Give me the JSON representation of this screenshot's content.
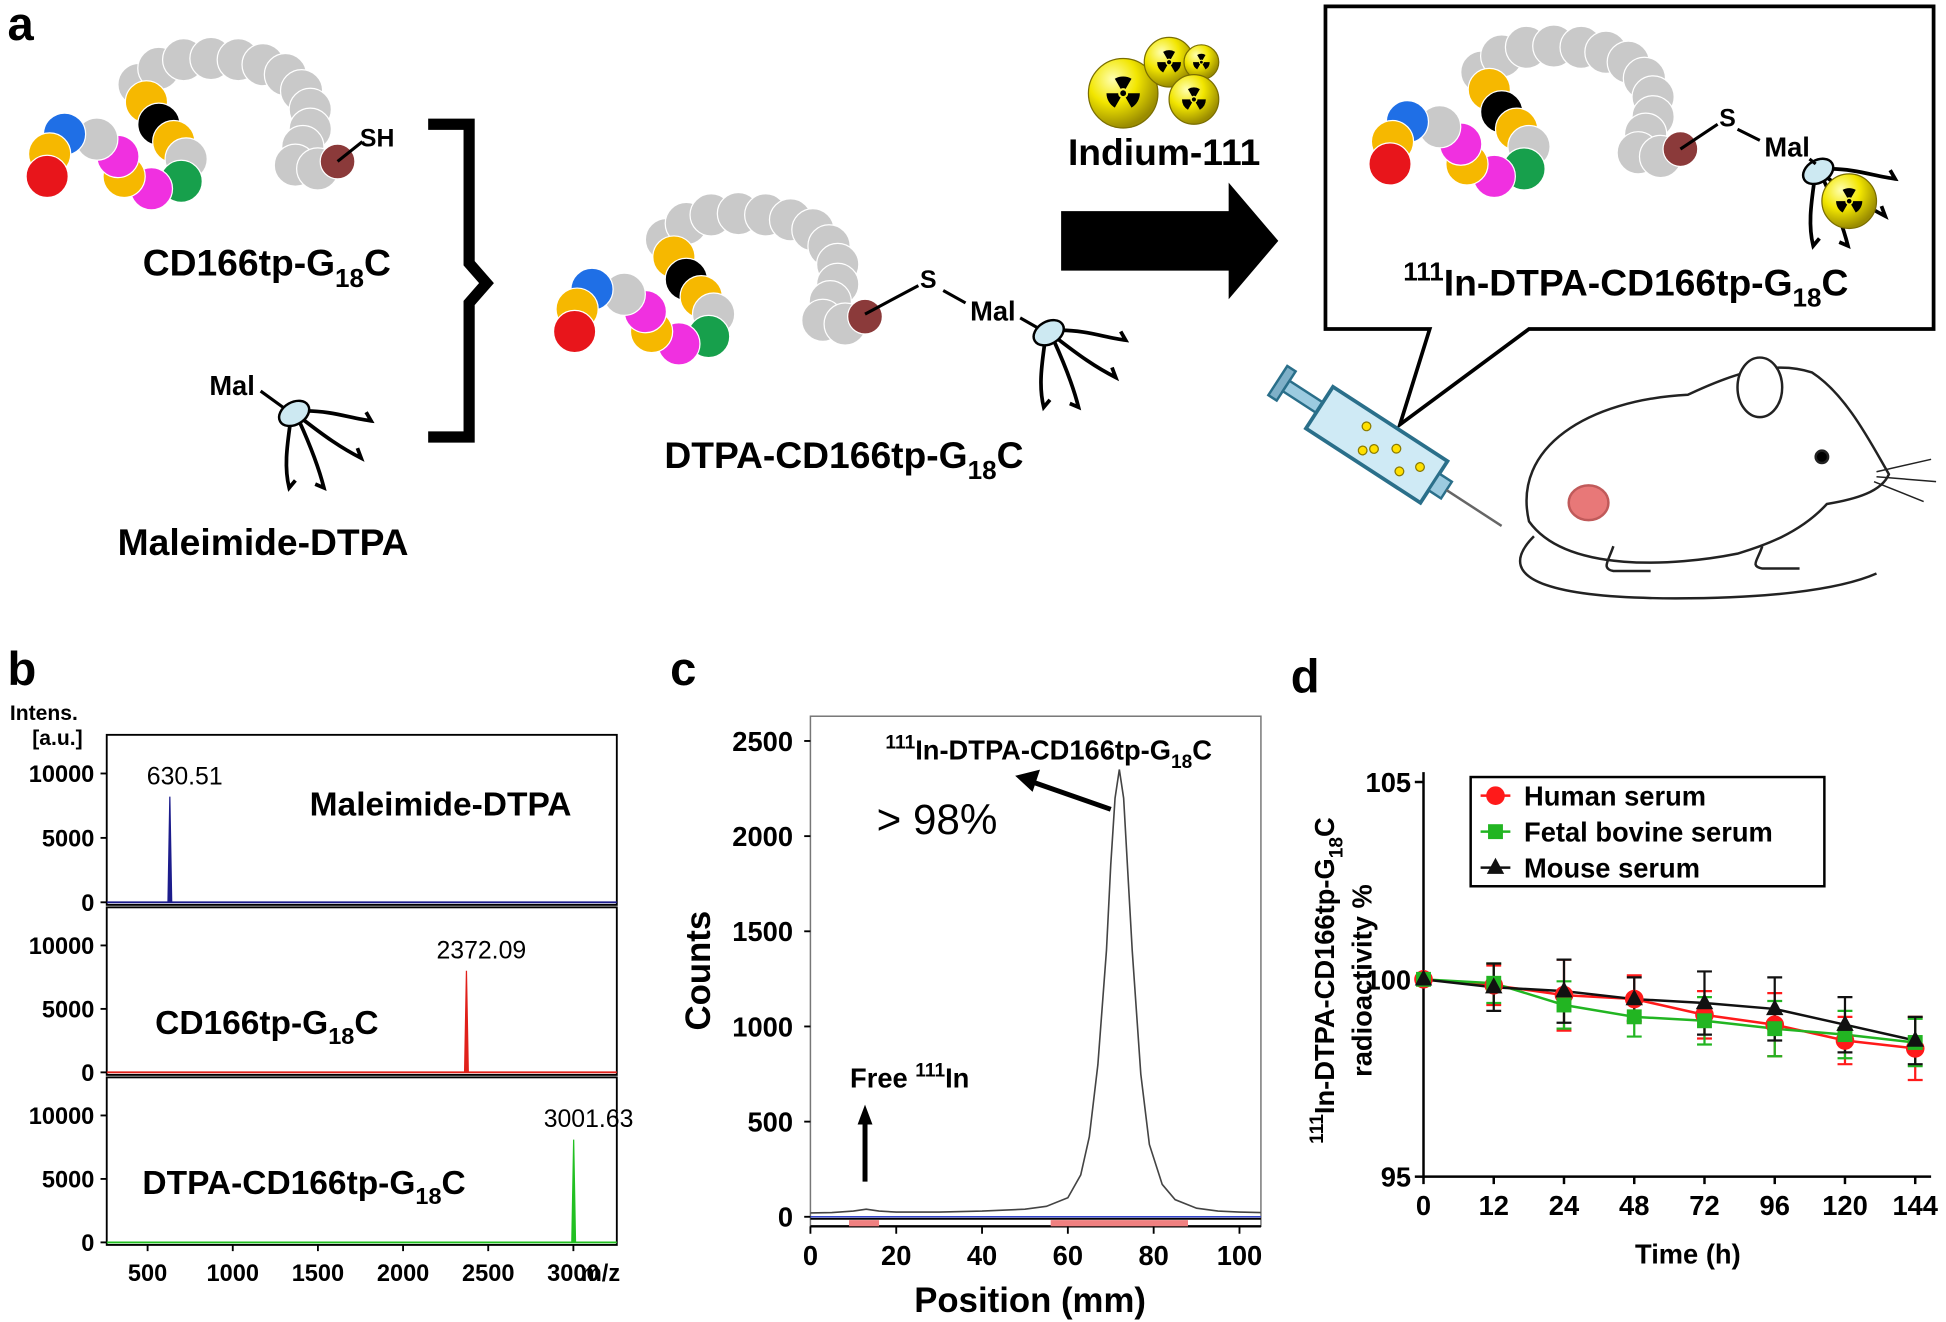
{
  "panel_labels": [
    "a",
    "b",
    "c",
    "d"
  ],
  "panel_a": {
    "peptide": [
      "CD166tp-G",
      "18",
      "C"
    ],
    "thiol": "SH",
    "maleimide_short": "Mal",
    "chelator": "Maleimide-DTPA",
    "conjugate": [
      "DTPA-CD166tp-G",
      "18",
      "C"
    ],
    "sulfur": "S",
    "isotope": "Indium-111",
    "product": [
      "111",
      "In-DTPA-CD166tp-G",
      "18",
      "C"
    ]
  },
  "chart_data": [
    {
      "type": "spectrum",
      "name": [
        "Maleimide-DTPA"
      ],
      "color": "#1c1c8c",
      "x": [
        630.51
      ],
      "values": [
        8200
      ],
      "xlim": [
        260,
        3255
      ],
      "ylim": [
        -200,
        13000
      ],
      "yticks": [
        0,
        5000,
        10000
      ],
      "y_label": [
        "Intens.",
        "[a.u.]"
      ]
    },
    {
      "type": "spectrum",
      "name": [
        "CD166tp-G",
        "18",
        "C"
      ],
      "color": "#e0201a",
      "x": [
        2372.09
      ],
      "values": [
        8000
      ],
      "xlim": [
        260,
        3255
      ],
      "ylim": [
        -200,
        13000
      ],
      "yticks": [
        0,
        5000,
        10000
      ]
    },
    {
      "type": "spectrum",
      "name": [
        "DTPA-CD166tp-G",
        "18",
        "C"
      ],
      "color": "#22c022",
      "x": [
        3001.63
      ],
      "values": [
        8100
      ],
      "xlim": [
        260,
        3255
      ],
      "ylim": [
        -200,
        13000
      ],
      "yticks": [
        0,
        5000,
        10000
      ],
      "xticks": [
        500,
        1000,
        1500,
        2000,
        2500,
        3000
      ],
      "x_label": "m/z"
    },
    {
      "type": "line",
      "color": "#444444",
      "x": [
        0,
        5,
        10,
        13,
        16,
        20,
        30,
        40,
        50,
        55,
        60,
        63,
        65,
        67,
        69,
        70,
        71,
        72,
        73,
        74,
        75,
        77,
        79,
        82,
        85,
        90,
        95,
        100,
        105
      ],
      "values": [
        20,
        22,
        30,
        40,
        30,
        25,
        25,
        30,
        40,
        55,
        100,
        220,
        420,
        800,
        1400,
        1850,
        2200,
        2350,
        2200,
        1800,
        1400,
        750,
        380,
        170,
        90,
        45,
        30,
        25,
        22
      ],
      "xlim": [
        0,
        105
      ],
      "ylim": [
        -50,
        2630
      ],
      "xticks": [
        0,
        20,
        40,
        60,
        80,
        100
      ],
      "yticks": [
        0,
        500,
        1000,
        1500,
        2000,
        2500
      ],
      "x_label": "Position (mm)",
      "y_label": "Counts",
      "regions": [
        [
          9,
          16
        ],
        [
          56,
          88
        ]
      ],
      "region_color": "#f08080",
      "annotations": {
        "product": [
          "111",
          "In-DTPA-CD166tp-G",
          "18",
          "C"
        ],
        "purity": "> 98%",
        "free": [
          "Free ",
          "111",
          "In"
        ]
      }
    },
    {
      "type": "errorline",
      "categories": [
        "0",
        "12",
        "24",
        "48",
        "72",
        "96",
        "120",
        "144"
      ],
      "ylim": [
        95,
        105
      ],
      "yticks": [
        95,
        100,
        105
      ],
      "x_label": "Time (h)",
      "y_label": [
        "111",
        "In-DTPA-CD166tp-G",
        "18",
        "C"
      ],
      "y_label_line2": "radioactivity %",
      "legend": "top-left",
      "series": [
        {
          "name": "Human serum",
          "color": "#ff1a1a",
          "marker": "circle",
          "values": [
            100,
            99.85,
            99.6,
            99.5,
            99.1,
            98.85,
            98.45,
            98.25
          ],
          "errors": [
            0,
            0.5,
            0.9,
            0.6,
            0.6,
            0.8,
            0.6,
            0.8
          ]
        },
        {
          "name": "Fetal bovine serum",
          "color": "#22b522",
          "marker": "square",
          "values": [
            100,
            99.9,
            99.35,
            99.05,
            98.95,
            98.75,
            98.6,
            98.4
          ],
          "errors": [
            0,
            0.5,
            0.6,
            0.5,
            0.6,
            0.7,
            0.6,
            0.6
          ]
        },
        {
          "name": "Mouse serum",
          "color": "#111111",
          "marker": "triangle",
          "values": [
            100,
            99.8,
            99.7,
            99.5,
            99.4,
            99.25,
            98.85,
            98.45
          ],
          "errors": [
            0,
            0.6,
            0.8,
            0.55,
            0.8,
            0.8,
            0.7,
            0.6
          ]
        }
      ]
    }
  ]
}
